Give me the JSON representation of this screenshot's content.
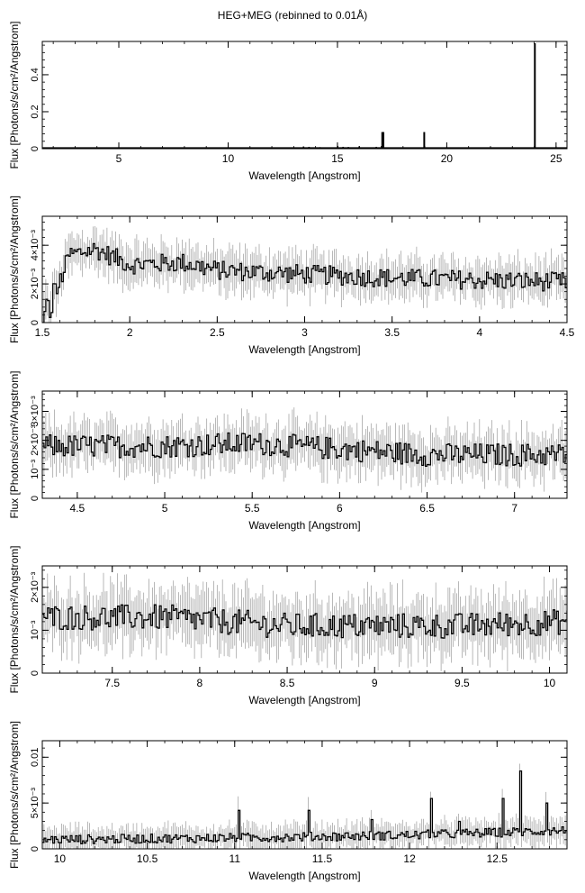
{
  "figure": {
    "title": "HEG+MEG (rebinned to 0.01Å)"
  },
  "chart_data": [
    {
      "type": "line",
      "title": "HEG+MEG (rebinned to 0.01Å)",
      "xlabel": "Wavelength [Angstrom]",
      "ylabel": "Flux [Photons/s/cm²/Angstrom]",
      "xlim": [
        1.5,
        25.5
      ],
      "ylim": [
        0,
        0.58
      ],
      "xticks": [
        5,
        10,
        15,
        20,
        25
      ],
      "xtick_labels": [
        "5",
        "10",
        "15",
        "20",
        "25"
      ],
      "yticks": [
        0,
        0.2,
        0.4
      ],
      "ytick_labels": [
        "0",
        "0.2",
        "0.4"
      ],
      "baseline": 0.004,
      "lines": [
        {
          "x": 17.05,
          "y": 0.09
        },
        {
          "x": 17.1,
          "y": 0.09
        },
        {
          "x": 18.97,
          "y": 0.09
        },
        {
          "x": 24.03,
          "y": 0.57
        }
      ],
      "minor_lines": [
        {
          "x": 13.45,
          "y": 0.012
        },
        {
          "x": 13.7,
          "y": 0.01
        },
        {
          "x": 14.2,
          "y": 0.008
        },
        {
          "x": 15.01,
          "y": 0.015
        },
        {
          "x": 15.26,
          "y": 0.01
        },
        {
          "x": 15.5,
          "y": 0.009
        },
        {
          "x": 16.0,
          "y": 0.013
        },
        {
          "x": 16.78,
          "y": 0.01
        }
      ]
    },
    {
      "type": "line",
      "xlabel": "Wavelength [Angstrom]",
      "ylabel": "Flux [Photons/s/cm²/Angstrom]",
      "xlim": [
        1.5,
        4.5
      ],
      "ylim": [
        0,
        0.0055
      ],
      "xticks": [
        1.5,
        2,
        2.5,
        3,
        3.5,
        4,
        4.5
      ],
      "xtick_labels": [
        "1.5",
        "2",
        "2.5",
        "3",
        "3.5",
        "4",
        "4.5"
      ],
      "yticks": [
        0,
        0.002,
        0.004
      ],
      "ytick_labels": [
        "0",
        "2×10⁻³",
        "4×10⁻³"
      ],
      "anchors": [
        [
          1.5,
          0.0
        ],
        [
          1.6,
          0.0022
        ],
        [
          1.65,
          0.0035
        ],
        [
          1.8,
          0.0038
        ],
        [
          2.0,
          0.003
        ],
        [
          2.3,
          0.0031
        ],
        [
          2.5,
          0.0027
        ],
        [
          3.0,
          0.0025
        ],
        [
          3.5,
          0.0023
        ],
        [
          4.0,
          0.0022
        ],
        [
          4.5,
          0.0021
        ]
      ],
      "noise": 0.0005,
      "error": 0.0009
    },
    {
      "type": "line",
      "xlabel": "Wavelength [Angstrom]",
      "ylabel": "Flux [Photons/s/cm²/Angstrom]",
      "xlim": [
        4.3,
        7.3
      ],
      "ylim": [
        0,
        0.0037
      ],
      "xticks": [
        4.5,
        5,
        5.5,
        6,
        6.5,
        7
      ],
      "xtick_labels": [
        "4.5",
        "5",
        "5.5",
        "6",
        "6.5",
        "7"
      ],
      "yticks": [
        0,
        0.001,
        0.002,
        0.003
      ],
      "ytick_labels": [
        "0",
        "10⁻³",
        "2×10⁻³",
        "3×10⁻³"
      ],
      "anchors": [
        [
          4.3,
          0.0018
        ],
        [
          5.0,
          0.0018
        ],
        [
          5.5,
          0.0019
        ],
        [
          6.0,
          0.0017
        ],
        [
          6.5,
          0.0015
        ],
        [
          7.3,
          0.0015
        ]
      ],
      "noise": 0.0004,
      "error": 0.0007
    },
    {
      "type": "line",
      "xlabel": "Wavelength [Angstrom]",
      "ylabel": "Flux [Photons/s/cm²/Angstrom]",
      "xlim": [
        7.1,
        10.1
      ],
      "ylim": [
        0,
        0.0025
      ],
      "xticks": [
        7.5,
        8,
        8.5,
        9,
        9.5,
        10
      ],
      "xtick_labels": [
        "7.5",
        "8",
        "8.5",
        "9",
        "9.5",
        "10"
      ],
      "yticks": [
        0,
        0.001,
        0.002
      ],
      "ytick_labels": [
        "0",
        "10⁻³",
        "2×10⁻³"
      ],
      "anchors": [
        [
          7.1,
          0.0013
        ],
        [
          7.8,
          0.0013
        ],
        [
          8.5,
          0.0011
        ],
        [
          9.0,
          0.0011
        ],
        [
          9.5,
          0.0011
        ],
        [
          10.1,
          0.0012
        ]
      ],
      "noise": 0.0003,
      "error": 0.0006
    },
    {
      "type": "line",
      "xlabel": "Wavelength [Angstrom]",
      "ylabel": "Flux [Photons/s/cm²/Angstrom]",
      "xlim": [
        9.9,
        12.9
      ],
      "ylim": [
        0,
        0.0118
      ],
      "xticks": [
        10,
        10.5,
        11,
        11.5,
        12,
        12.5
      ],
      "xtick_labels": [
        "10",
        "10.5",
        "11",
        "11.5",
        "12",
        "12.5"
      ],
      "yticks": [
        0,
        0.005,
        0.01
      ],
      "ytick_labels": [
        "0",
        "5×10⁻³",
        "0.01"
      ],
      "anchors": [
        [
          9.9,
          0.001
        ],
        [
          11.0,
          0.0012
        ],
        [
          12.0,
          0.0015
        ],
        [
          12.9,
          0.002
        ]
      ],
      "noise": 0.0005,
      "error": 0.0012,
      "spikes": [
        {
          "x": 11.02,
          "y": 0.0042
        },
        {
          "x": 11.42,
          "y": 0.0042
        },
        {
          "x": 12.12,
          "y": 0.0055
        },
        {
          "x": 12.63,
          "y": 0.0085
        },
        {
          "x": 12.78,
          "y": 0.005
        },
        {
          "x": 12.53,
          "y": 0.0055
        },
        {
          "x": 11.78,
          "y": 0.0032
        },
        {
          "x": 12.28,
          "y": 0.003
        }
      ]
    }
  ]
}
